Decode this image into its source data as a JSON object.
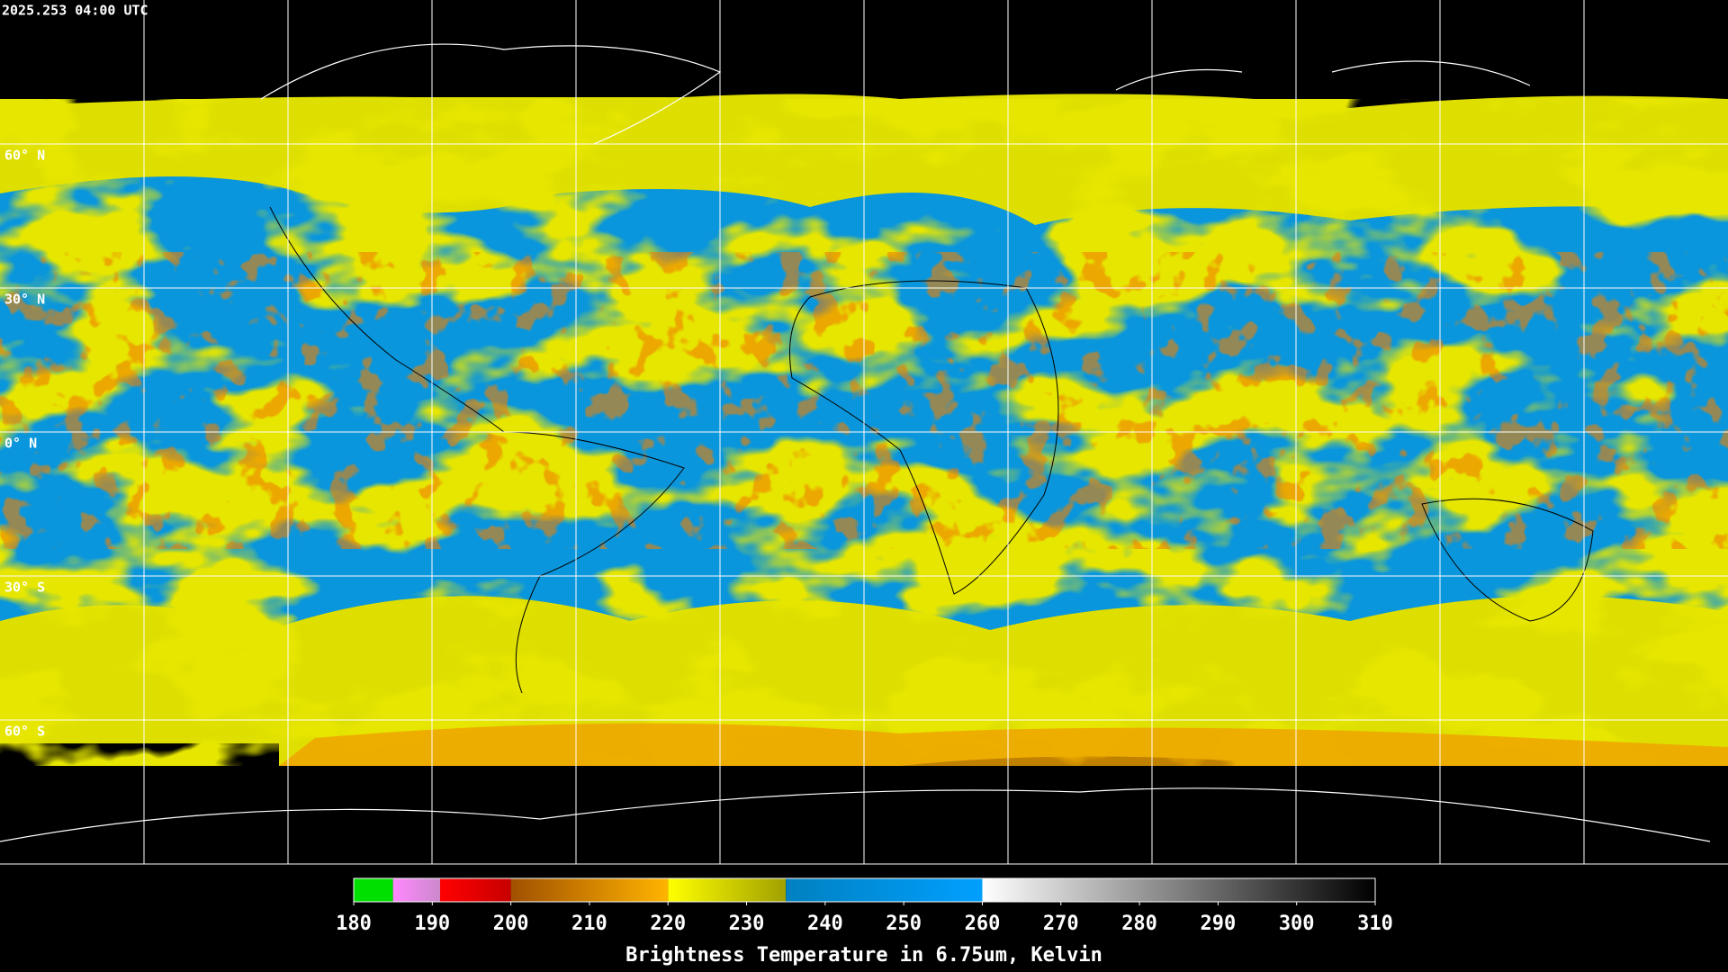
{
  "header": {
    "timestamp": "2025.253 04:00 UTC"
  },
  "map": {
    "lat_labels": [
      "60° N",
      "30° N",
      "0° N",
      "30° S",
      "60° S"
    ]
  },
  "colorbar": {
    "label": "Brightness Temperature in 6.75um, Kelvin",
    "range": [
      180,
      310
    ],
    "ticks": [
      180,
      190,
      200,
      210,
      220,
      230,
      240,
      250,
      260,
      270,
      280,
      290,
      300,
      310
    ],
    "segments": [
      {
        "from": 180,
        "to": 185,
        "colors": [
          "#00e000",
          "#00e000"
        ]
      },
      {
        "from": 185,
        "to": 191,
        "colors": [
          "#ff88ff",
          "#cc88cc"
        ]
      },
      {
        "from": 191,
        "to": 200,
        "colors": [
          "#ff0000",
          "#c80000"
        ]
      },
      {
        "from": 200,
        "to": 220,
        "colors": [
          "#a05000",
          "#ffb400"
        ]
      },
      {
        "from": 220,
        "to": 235,
        "colors": [
          "#ffff00",
          "#a0a000"
        ]
      },
      {
        "from": 235,
        "to": 260,
        "colors": [
          "#0080c0",
          "#00a0ff"
        ]
      },
      {
        "from": 260,
        "to": 310,
        "colors": [
          "#ffffff",
          "#000000"
        ]
      }
    ]
  }
}
